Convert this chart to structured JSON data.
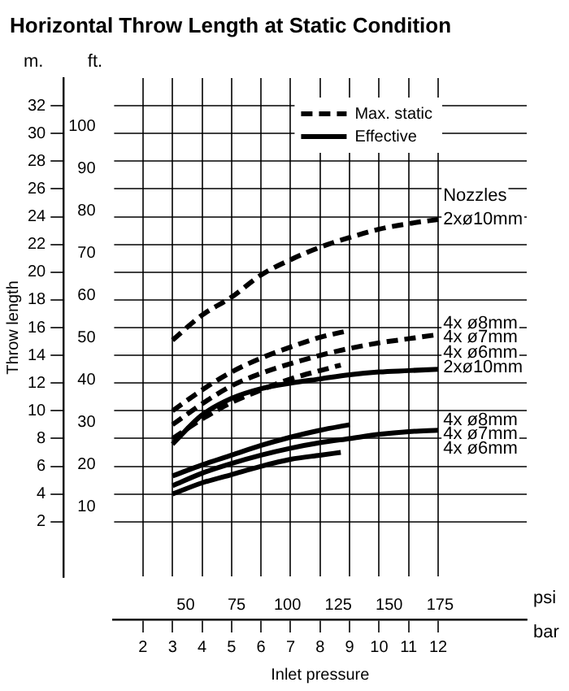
{
  "chart_data": {
    "type": "line",
    "title": "Horizontal Throw Length at Static Condition",
    "xlabel": "Inlet pressure",
    "ylabel": "Throw length",
    "xlim": [
      1,
      15
    ],
    "xticks": [
      2,
      3,
      4,
      5,
      6,
      7,
      8,
      9,
      10,
      11,
      12
    ],
    "x2lim": [
      14.5,
      217.6
    ],
    "x2ticks": [
      50,
      75,
      100,
      125,
      150,
      175
    ],
    "ylim": [
      -2,
      34
    ],
    "yticks": [
      2,
      4,
      6,
      8,
      10,
      12,
      14,
      16,
      18,
      20,
      22,
      24,
      26,
      28,
      30,
      32
    ],
    "y2lim": [
      -6.6,
      111.5
    ],
    "y2ticks": [
      10,
      20,
      30,
      40,
      50,
      60,
      70,
      80,
      90,
      100
    ],
    "grid": true,
    "legend": "top right",
    "marker": "none",
    "series": [
      {
        "name": "Max. static",
        "color": "#000000",
        "line_style": "dashed",
        "x": [
          3,
          4,
          5,
          6,
          7,
          8,
          9,
          10,
          11,
          12
        ],
        "values": [
          15.1,
          16.9,
          18.2,
          19.8,
          20.9,
          21.8,
          22.5,
          23.1,
          23.5,
          23.8
        ]
      },
      {
        "color": "#000000",
        "line_style": "dashed",
        "x": [
          3,
          4,
          5,
          6,
          7,
          8,
          9
        ],
        "values": [
          10.0,
          11.5,
          12.8,
          13.8,
          14.6,
          15.3,
          15.8
        ]
      },
      {
        "color": "#000000",
        "line_style": "dashed",
        "x": [
          3,
          4,
          5,
          6,
          7,
          8,
          9,
          10,
          11,
          12
        ],
        "values": [
          9.0,
          10.5,
          11.8,
          12.7,
          13.4,
          14.0,
          14.5,
          14.9,
          15.2,
          15.5
        ]
      },
      {
        "color": "#000000",
        "line_style": "dashed",
        "x": [
          3,
          4,
          5,
          6,
          7,
          8,
          8.7
        ],
        "values": [
          8.0,
          9.4,
          10.6,
          11.5,
          12.3,
          12.9,
          13.3
        ]
      },
      {
        "name": "Effective",
        "color": "#000000",
        "line_style": "solid",
        "x": [
          3,
          4,
          5,
          6,
          7,
          8,
          9,
          10,
          11,
          12
        ],
        "values": [
          7.6,
          9.7,
          10.9,
          11.6,
          12.0,
          12.3,
          12.6,
          12.8,
          12.9,
          13.0
        ]
      },
      {
        "color": "#000000",
        "line_style": "solid",
        "x": [
          3,
          4,
          5,
          6,
          7,
          8,
          9
        ],
        "values": [
          5.3,
          6.1,
          6.8,
          7.5,
          8.1,
          8.6,
          9.0
        ]
      },
      {
        "color": "#000000",
        "line_style": "solid",
        "x": [
          3,
          4,
          5,
          6,
          7,
          8,
          9,
          10,
          11,
          12
        ],
        "values": [
          4.6,
          5.5,
          6.2,
          6.8,
          7.3,
          7.7,
          8.0,
          8.3,
          8.5,
          8.6
        ]
      },
      {
        "color": "#000000",
        "line_style": "solid",
        "x": [
          3,
          4,
          5,
          6,
          7,
          8,
          8.7
        ],
        "values": [
          4.0,
          4.8,
          5.4,
          6.0,
          6.5,
          6.8,
          7.0
        ]
      }
    ],
    "annotations": [
      "m.",
      "ft.",
      "psi",
      "bar",
      "Nozzles",
      "2xø10mm",
      "4x ø8mm",
      "4x ø7mm",
      "4x ø6mm",
      "2xø10mm",
      "4x ø8mm",
      "4x ø7mm",
      "4x ø6mm"
    ]
  }
}
